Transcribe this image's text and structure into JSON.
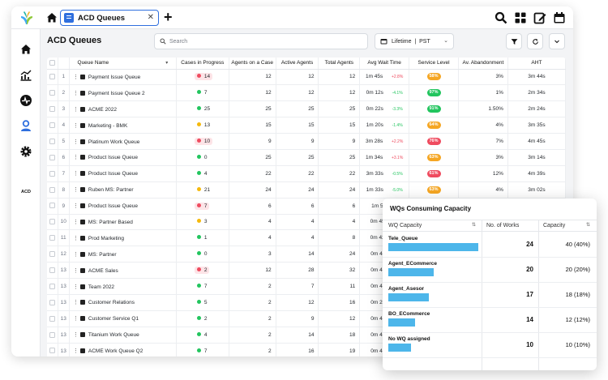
{
  "colors": {
    "accent": "#2f6fde",
    "sl_orange": "#f5a623",
    "sl_green": "#22c55e",
    "sl_red": "#ef4b5f",
    "capacity_bar": "#4db6ea"
  },
  "icons": {
    "logo": "brand-logo-icon",
    "top_home": "home-icon",
    "top_tools": [
      "search-icon",
      "grid-icon",
      "edit-icon",
      "calendar-icon"
    ],
    "sidebar": [
      "home-icon",
      "analytics-icon",
      "activity-icon",
      "agents-icon",
      "settings-icon"
    ],
    "header_buttons": [
      "filter-icon",
      "refresh-icon",
      "chevron-down-icon"
    ]
  },
  "topbar": {
    "tab_label": "ACD Queues",
    "tab_close": "✕",
    "plus": "+"
  },
  "sidebar": {
    "acd_label": "ACD"
  },
  "page": {
    "title": "ACD Queues",
    "search_placeholder": "Search",
    "time_filter": "Lifetime  |  PST"
  },
  "table": {
    "columns": [
      "Queue Name",
      "Cases in Progress",
      "Agents on a Case",
      "Active Agents",
      "Total Agents",
      "Avg Wait Time",
      "Service Level",
      "Av. Abandonment",
      "AHT"
    ],
    "rows": [
      {
        "idx": "1",
        "name": "Payment Issue Queue",
        "cases": "14",
        "cases_status": "red",
        "on_case": "12",
        "active": "12",
        "total": "12",
        "wait": "1m 45s",
        "delta": "+2.8%",
        "delta_dir": "up",
        "sl": "58%",
        "sl_status": "orange",
        "aband": "3%",
        "aht": "3m 44s"
      },
      {
        "idx": "2",
        "name": "Payment Issue Queue 2",
        "cases": "7",
        "cases_status": "green",
        "on_case": "12",
        "active": "12",
        "total": "12",
        "wait": "0m 12s",
        "delta": "-4.1%",
        "delta_dir": "down",
        "sl": "97%",
        "sl_status": "green",
        "aband": "1%",
        "aht": "2m 34s"
      },
      {
        "idx": "3",
        "name": "ACME 2022",
        "cases": "25",
        "cases_status": "green",
        "on_case": "25",
        "active": "25",
        "total": "25",
        "wait": "0m 22s",
        "delta": "-3.3%",
        "delta_dir": "down",
        "sl": "91%",
        "sl_status": "green",
        "aband": "1.50%",
        "aht": "2m 24s"
      },
      {
        "idx": "4",
        "name": "Marketing - BMK",
        "cases": "13",
        "cases_status": "yellow",
        "on_case": "15",
        "active": "15",
        "total": "15",
        "wait": "1m 20s",
        "delta": "-1.4%",
        "delta_dir": "down",
        "sl": "64%",
        "sl_status": "orange",
        "aband": "4%",
        "aht": "3m 35s"
      },
      {
        "idx": "5",
        "name": "Platinum Work Queue",
        "cases": "10",
        "cases_status": "red",
        "on_case": "9",
        "active": "9",
        "total": "9",
        "wait": "3m 28s",
        "delta": "+2.2%",
        "delta_dir": "up",
        "sl": "76%",
        "sl_status": "red",
        "aband": "7%",
        "aht": "4m 45s"
      },
      {
        "idx": "6",
        "name": "Product Issue Queue",
        "cases": "0",
        "cases_status": "green",
        "on_case": "25",
        "active": "25",
        "total": "25",
        "wait": "1m 34s",
        "delta": "+3.1%",
        "delta_dir": "up",
        "sl": "63%",
        "sl_status": "orange",
        "aband": "3%",
        "aht": "3m 14s"
      },
      {
        "idx": "7",
        "name": "Product Issue Queue",
        "cases": "4",
        "cases_status": "green",
        "on_case": "22",
        "active": "22",
        "total": "22",
        "wait": "3m 33s",
        "delta": "-0.5%",
        "delta_dir": "down",
        "sl": "61%",
        "sl_status": "red",
        "aband": "12%",
        "aht": "4m 39s"
      },
      {
        "idx": "8",
        "name": "Ruben MS: Partner",
        "cases": "21",
        "cases_status": "yellow",
        "on_case": "24",
        "active": "24",
        "total": "24",
        "wait": "1m 33s",
        "delta": "-5.0%",
        "delta_dir": "down",
        "sl": "63%",
        "sl_status": "orange",
        "aband": "4%",
        "aht": "3m 02s"
      },
      {
        "idx": "9",
        "name": "Product Issue Queue",
        "cases": "7",
        "cases_status": "red",
        "on_case": "6",
        "active": "6",
        "total": "6",
        "wait": "1m 53s",
        "delta": "",
        "delta_dir": "",
        "sl": "",
        "sl_status": "",
        "aband": "",
        "aht": ""
      },
      {
        "idx": "10",
        "name": "MS: Partner Based",
        "cases": "3",
        "cases_status": "yellow",
        "on_case": "4",
        "active": "4",
        "total": "4",
        "wait": "0m 45s",
        "delta": "+",
        "delta_dir": "up",
        "sl": "",
        "sl_status": "",
        "aband": "",
        "aht": ""
      },
      {
        "idx": "11",
        "name": "Prod Marketing",
        "cases": "1",
        "cases_status": "green",
        "on_case": "4",
        "active": "4",
        "total": "8",
        "wait": "0m 42s",
        "delta": "+",
        "delta_dir": "up",
        "sl": "",
        "sl_status": "",
        "aband": "",
        "aht": ""
      },
      {
        "idx": "12",
        "name": "MS: Partner",
        "cases": "0",
        "cases_status": "green",
        "on_case": "3",
        "active": "14",
        "total": "24",
        "wait": "0m 44s",
        "delta": "-",
        "delta_dir": "down",
        "sl": "",
        "sl_status": "",
        "aband": "",
        "aht": ""
      },
      {
        "idx": "13",
        "name": "ACME Sales",
        "cases": "2",
        "cases_status": "red",
        "on_case": "12",
        "active": "28",
        "total": "32",
        "wait": "0m 49s",
        "delta": "-",
        "delta_dir": "down",
        "sl": "",
        "sl_status": "",
        "aband": "",
        "aht": ""
      },
      {
        "idx": "13",
        "name": "Team 2022",
        "cases": "7",
        "cases_status": "green",
        "on_case": "2",
        "active": "7",
        "total": "11",
        "wait": "0m 49s",
        "delta": "-",
        "delta_dir": "down",
        "sl": "",
        "sl_status": "",
        "aband": "",
        "aht": ""
      },
      {
        "idx": "13",
        "name": "Customer Relations",
        "cases": "5",
        "cases_status": "green",
        "on_case": "2",
        "active": "12",
        "total": "16",
        "wait": "0m 26s",
        "delta": "-",
        "delta_dir": "down",
        "sl": "",
        "sl_status": "",
        "aband": "",
        "aht": ""
      },
      {
        "idx": "13",
        "name": "Customer Service Q1",
        "cases": "2",
        "cases_status": "green",
        "on_case": "2",
        "active": "9",
        "total": "12",
        "wait": "0m 49s",
        "delta": "-",
        "delta_dir": "down",
        "sl": "",
        "sl_status": "",
        "aband": "",
        "aht": ""
      },
      {
        "idx": "13",
        "name": "Titanium Work Queue",
        "cases": "4",
        "cases_status": "green",
        "on_case": "2",
        "active": "14",
        "total": "18",
        "wait": "0m 45s",
        "delta": "-",
        "delta_dir": "down",
        "sl": "",
        "sl_status": "",
        "aband": "",
        "aht": ""
      },
      {
        "idx": "13",
        "name": "ACME Work Queue Q2",
        "cases": "7",
        "cases_status": "green",
        "on_case": "2",
        "active": "16",
        "total": "19",
        "wait": "0m 46s",
        "delta": "-",
        "delta_dir": "down",
        "sl": "",
        "sl_status": "",
        "aband": "",
        "aht": ""
      }
    ]
  },
  "popup": {
    "title": "WQs Consuming Capacity",
    "columns": [
      "WQ Capacity",
      "No. of Works",
      "Capacity"
    ],
    "rows": [
      {
        "name": "Tele_Queue",
        "works": "24",
        "capacity": "40 (40%)",
        "fill": 0.4
      },
      {
        "name": "Agent_ECommerce",
        "works": "20",
        "capacity": "20 (20%)",
        "fill": 0.2
      },
      {
        "name": "Agent_Asesor",
        "works": "17",
        "capacity": "18 (18%)",
        "fill": 0.18
      },
      {
        "name": "BO_ECommerce",
        "works": "14",
        "capacity": "12 (12%)",
        "fill": 0.12
      },
      {
        "name": "No WQ assigned",
        "works": "10",
        "capacity": "10 (10%)",
        "fill": 0.1
      }
    ]
  }
}
